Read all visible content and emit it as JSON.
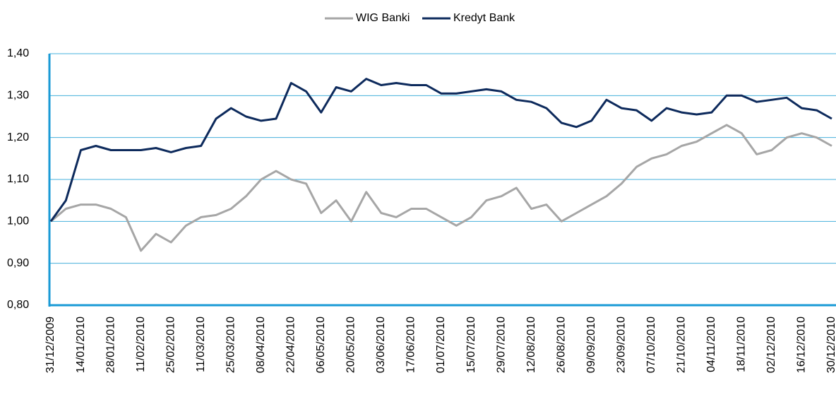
{
  "chart_data": {
    "type": "line",
    "categories": [
      "31/12/2009",
      null,
      "14/01/2010",
      null,
      "28/01/2010",
      null,
      "11/02/2010",
      null,
      "25/02/2010",
      null,
      "11/03/2010",
      null,
      "25/03/2010",
      null,
      "08/04/2010",
      null,
      "22/04/2010",
      null,
      "06/05/2010",
      null,
      "20/05/2010",
      null,
      "03/06/2010",
      null,
      "17/06/2010",
      null,
      "01/07/2010",
      null,
      "15/07/2010",
      null,
      "29/07/2010",
      null,
      "12/08/2010",
      null,
      "26/08/2010",
      null,
      "09/09/2010",
      null,
      "23/09/2010",
      null,
      "07/10/2010",
      null,
      "21/10/2010",
      null,
      "04/11/2010",
      null,
      "18/11/2010",
      null,
      "02/12/2010",
      null,
      "16/12/2010",
      null,
      "30/12/2010"
    ],
    "series": [
      {
        "name": "WIG Banki",
        "color": "#a6a6a6",
        "values": [
          1.0,
          1.03,
          1.04,
          1.04,
          1.03,
          1.01,
          0.93,
          0.97,
          0.95,
          0.99,
          1.01,
          1.015,
          1.03,
          1.06,
          1.1,
          1.12,
          1.1,
          1.09,
          1.02,
          1.05,
          1.0,
          1.07,
          1.02,
          1.01,
          1.03,
          1.03,
          1.01,
          0.99,
          1.01,
          1.05,
          1.06,
          1.08,
          1.03,
          1.04,
          1.0,
          1.02,
          1.04,
          1.06,
          1.09,
          1.13,
          1.15,
          1.16,
          1.18,
          1.19,
          1.21,
          1.23,
          1.21,
          1.16,
          1.17,
          1.2,
          1.21,
          1.2,
          1.18
        ]
      },
      {
        "name": "Kredyt Bank",
        "color": "#0d2a5c",
        "values": [
          1.0,
          1.05,
          1.17,
          1.18,
          1.17,
          1.17,
          1.17,
          1.175,
          1.165,
          1.175,
          1.18,
          1.245,
          1.27,
          1.25,
          1.24,
          1.245,
          1.33,
          1.31,
          1.26,
          1.32,
          1.31,
          1.34,
          1.325,
          1.33,
          1.325,
          1.325,
          1.305,
          1.305,
          1.31,
          1.315,
          1.31,
          1.29,
          1.285,
          1.27,
          1.235,
          1.225,
          1.24,
          1.29,
          1.27,
          1.265,
          1.24,
          1.27,
          1.26,
          1.255,
          1.26,
          1.3,
          1.3,
          1.285,
          1.29,
          1.295,
          1.27,
          1.265,
          1.245
        ]
      }
    ],
    "ylim": [
      0.8,
      1.4
    ],
    "yticks": [
      {
        "value": 0.8,
        "label": "0,80"
      },
      {
        "value": 0.9,
        "label": "0,90"
      },
      {
        "value": 1.0,
        "label": "1,00"
      },
      {
        "value": 1.1,
        "label": "1,10"
      },
      {
        "value": 1.2,
        "label": "1,20"
      },
      {
        "value": 1.3,
        "label": "1,30"
      },
      {
        "value": 1.4,
        "label": "1,40"
      }
    ],
    "grid": true,
    "legend": "top"
  }
}
